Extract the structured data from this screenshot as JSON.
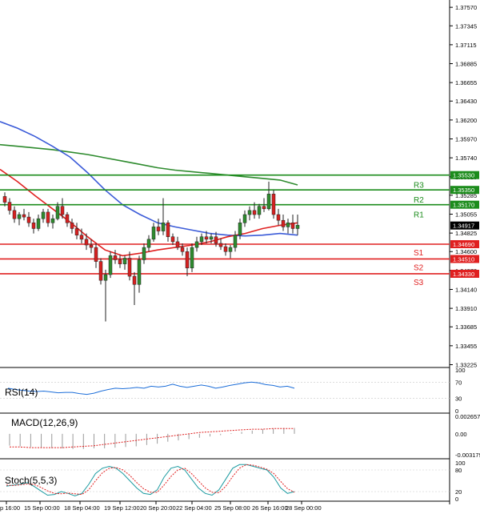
{
  "chart_data": {
    "type": "candlestick",
    "price_axis": {
      "range": [
        1.3322,
        1.3762
      ],
      "tick_labels": [
        "1.37570",
        "1.37345",
        "1.37115",
        "1.36885",
        "1.36655",
        "1.36430",
        "1.36200",
        "1.35970",
        "1.35740",
        "1.35510",
        "1.35285",
        "1.35055",
        "1.34825",
        "1.34600",
        "1.34370",
        "1.34140",
        "1.33910",
        "1.33685",
        "1.33455",
        "1.33225"
      ]
    },
    "time_axis": {
      "labels": [
        "p 16:00",
        "15 Sep 00:00",
        "18 Sep 04:00",
        "19 Sep 12:00",
        "20 Sep 20:00",
        "22 Sep 04:00",
        "25 Sep 08:00",
        "26 Sep 16:00",
        "28 Sep 00:00"
      ]
    },
    "candles": [
      [
        1.3527,
        1.3532,
        1.3515,
        1.352
      ],
      [
        1.352,
        1.3525,
        1.3505,
        1.351
      ],
      [
        1.351,
        1.3515,
        1.3495,
        1.35
      ],
      [
        1.35,
        1.3508,
        1.3492,
        1.3505
      ],
      [
        1.3505,
        1.3512,
        1.3498,
        1.3502
      ],
      [
        1.3502,
        1.3508,
        1.349,
        1.3495
      ],
      [
        1.3495,
        1.35,
        1.3482,
        1.3488
      ],
      [
        1.3488,
        1.3505,
        1.3485,
        1.35
      ],
      [
        1.35,
        1.3512,
        1.3495,
        1.3508
      ],
      [
        1.3508,
        1.3512,
        1.349,
        1.3495
      ],
      [
        1.3495,
        1.3505,
        1.3488,
        1.35
      ],
      [
        1.35,
        1.352,
        1.3498,
        1.3515
      ],
      [
        1.3515,
        1.3525,
        1.35,
        1.3505
      ],
      [
        1.3505,
        1.3508,
        1.349,
        1.3495
      ],
      [
        1.3495,
        1.35,
        1.3482,
        1.3488
      ],
      [
        1.3488,
        1.3495,
        1.3475,
        1.348
      ],
      [
        1.348,
        1.3488,
        1.347,
        1.3475
      ],
      [
        1.3475,
        1.3482,
        1.3462,
        1.3468
      ],
      [
        1.3468,
        1.3475,
        1.3458,
        1.3465
      ],
      [
        1.3465,
        1.347,
        1.344,
        1.3448
      ],
      [
        1.3448,
        1.3452,
        1.342,
        1.3425
      ],
      [
        1.3425,
        1.3438,
        1.3375,
        1.3432
      ],
      [
        1.3432,
        1.346,
        1.3428,
        1.3455
      ],
      [
        1.3455,
        1.3462,
        1.3445,
        1.345
      ],
      [
        1.345,
        1.3456,
        1.344,
        1.3445
      ],
      [
        1.3445,
        1.3455,
        1.3438,
        1.3452
      ],
      [
        1.3452,
        1.346,
        1.3425,
        1.343
      ],
      [
        1.343,
        1.3435,
        1.3395,
        1.342
      ],
      [
        1.342,
        1.3455,
        1.341,
        1.345
      ],
      [
        1.345,
        1.347,
        1.3445,
        1.3465
      ],
      [
        1.3465,
        1.348,
        1.346,
        1.3475
      ],
      [
        1.3475,
        1.3495,
        1.3472,
        1.349
      ],
      [
        1.349,
        1.35,
        1.348,
        1.3485
      ],
      [
        1.3485,
        1.3525,
        1.348,
        1.3495
      ],
      [
        1.3495,
        1.3498,
        1.3472,
        1.3478
      ],
      [
        1.3478,
        1.3482,
        1.3468,
        1.3472
      ],
      [
        1.3472,
        1.3478,
        1.3462,
        1.3465
      ],
      [
        1.3465,
        1.347,
        1.3455,
        1.346
      ],
      [
        1.346,
        1.3465,
        1.343,
        1.344
      ],
      [
        1.344,
        1.347,
        1.3435,
        1.3465
      ],
      [
        1.3465,
        1.3478,
        1.346,
        1.3472
      ],
      [
        1.3472,
        1.3482,
        1.3468,
        1.3478
      ],
      [
        1.3478,
        1.3485,
        1.347,
        1.3475
      ],
      [
        1.3475,
        1.3482,
        1.347,
        1.3478
      ],
      [
        1.3478,
        1.3484,
        1.3466,
        1.347
      ],
      [
        1.347,
        1.3476,
        1.3462,
        1.3466
      ],
      [
        1.3466,
        1.347,
        1.3455,
        1.346
      ],
      [
        1.346,
        1.3468,
        1.3452,
        1.3465
      ],
      [
        1.3465,
        1.3485,
        1.346,
        1.348
      ],
      [
        1.348,
        1.35,
        1.3475,
        1.3495
      ],
      [
        1.3495,
        1.351,
        1.349,
        1.3505
      ],
      [
        1.3505,
        1.3515,
        1.3498,
        1.351
      ],
      [
        1.351,
        1.352,
        1.35,
        1.3505
      ],
      [
        1.3505,
        1.3518,
        1.35,
        1.3515
      ],
      [
        1.3515,
        1.3525,
        1.3508,
        1.3512
      ],
      [
        1.3512,
        1.3545,
        1.351,
        1.353
      ],
      [
        1.353,
        1.3535,
        1.35,
        1.3505
      ],
      [
        1.3505,
        1.3512,
        1.3492,
        1.3498
      ],
      [
        1.3498,
        1.3505,
        1.3485,
        1.349
      ],
      [
        1.349,
        1.35,
        1.3482,
        1.3495
      ],
      [
        1.3495,
        1.3505,
        1.3482,
        1.3488
      ],
      [
        1.3488,
        1.3505,
        1.348,
        1.3492
      ]
    ],
    "moving_averages": [
      {
        "color": "#2e8b2e",
        "values": [
          1.359,
          1.3588,
          1.3586,
          1.3584,
          1.3581,
          1.3578,
          1.3574,
          1.357,
          1.3566,
          1.3562,
          1.3559,
          1.3557,
          1.3555,
          1.3553,
          1.3551,
          1.3549,
          1.3547,
          1.3541
        ]
      },
      {
        "color": "#3b5bd8",
        "values": [
          1.3618,
          1.361,
          1.36,
          1.3588,
          1.3575,
          1.3556,
          1.3535,
          1.3517,
          1.3505,
          1.3495,
          1.349,
          1.3486,
          1.3482,
          1.348,
          1.3479,
          1.348,
          1.3482,
          1.348
        ]
      },
      {
        "color": "#e02020",
        "values": [
          1.356,
          1.3545,
          1.3528,
          1.3512,
          1.3496,
          1.3478,
          1.3462,
          1.3455,
          1.3458,
          1.3462,
          1.3465,
          1.3468,
          1.3472,
          1.3478,
          1.3482,
          1.3488,
          1.3492,
          1.3495
        ]
      }
    ],
    "levels": [
      {
        "name": "R3",
        "price_label": "1.35530",
        "value": 1.3553,
        "color": "#1c8c1c"
      },
      {
        "name": "R2",
        "price_label": "1.35350",
        "value": 1.3535,
        "color": "#1c8c1c"
      },
      {
        "name": "R1",
        "price_label": "1.35170",
        "value": 1.3517,
        "color": "#1c8c1c"
      },
      {
        "name": "S1",
        "price_label": "1.34690",
        "value": 1.3469,
        "color": "#e02020"
      },
      {
        "name": "S2",
        "price_label": "1.34510",
        "value": 1.3451,
        "color": "#e02020"
      },
      {
        "name": "S3",
        "price_label": "1.34330",
        "value": 1.3433,
        "color": "#e02020"
      }
    ],
    "current_price": {
      "label": "1.34917",
      "value": 1.34917
    },
    "indicators": {
      "rsi": {
        "title": "RSI(14)",
        "axis_labels": [
          "100",
          "70",
          "30",
          "0"
        ],
        "range": [
          0,
          100
        ],
        "values": [
          55,
          52,
          50,
          48,
          47,
          48,
          46,
          44,
          45,
          45,
          42,
          40,
          43,
          48,
          52,
          55,
          54,
          55,
          57,
          55,
          60,
          58,
          60,
          65,
          60,
          57,
          60,
          63,
          60,
          55,
          58,
          62,
          65,
          68,
          70,
          68,
          64,
          62,
          58,
          60,
          55
        ]
      },
      "macd": {
        "title": "MACD(12,26,9)",
        "axis_labels": [
          "0.002657",
          "0.00",
          "-0.003179"
        ],
        "range": [
          -0.003179,
          0.002657
        ],
        "histogram": [
          -0.0018,
          -0.0019,
          -0.002,
          -0.0021,
          -0.0022,
          -0.0022,
          -0.0023,
          -0.0023,
          -0.0022,
          -0.0022,
          -0.0021,
          -0.002,
          -0.0019,
          -0.0017,
          -0.0015,
          -0.0012,
          -0.001,
          -0.0008,
          -0.0006,
          -0.0004,
          -0.0002,
          0.0001,
          0.0003,
          0.0005,
          0.0007,
          0.0008,
          0.0009,
          0.0009
        ],
        "signal": [
          -0.002,
          -0.002,
          -0.0021,
          -0.0021,
          -0.0021,
          -0.0021,
          -0.002,
          -0.0019,
          -0.0018,
          -0.0016,
          -0.0014,
          -0.0012,
          -0.001,
          -0.0008,
          -0.0006,
          -0.0004,
          -0.0002,
          0.0,
          0.0002,
          0.0003,
          0.0004,
          0.0005,
          0.0006,
          0.0007,
          0.0007,
          0.0008,
          0.0008,
          0.0008
        ]
      },
      "stoch": {
        "title": "Stoch(5,5,3)",
        "axis_labels": [
          "100",
          "80",
          "20",
          "0"
        ],
        "range": [
          0,
          100
        ],
        "k": [
          35,
          38,
          40,
          45,
          35,
          22,
          10,
          12,
          20,
          15,
          8,
          15,
          40,
          70,
          85,
          90,
          85,
          70,
          50,
          30,
          15,
          12,
          25,
          60,
          85,
          90,
          80,
          55,
          30,
          15,
          10,
          25,
          55,
          85,
          95,
          95,
          90,
          85,
          80,
          60,
          30,
          15,
          20
        ],
        "d": [
          38,
          37,
          39,
          41,
          40,
          32,
          22,
          15,
          14,
          16,
          14,
          12,
          25,
          50,
          72,
          85,
          87,
          80,
          65,
          45,
          28,
          18,
          18,
          38,
          62,
          80,
          85,
          70,
          50,
          30,
          18,
          17,
          35,
          62,
          85,
          95,
          93,
          88,
          82,
          70,
          48,
          28,
          18
        ]
      }
    }
  }
}
